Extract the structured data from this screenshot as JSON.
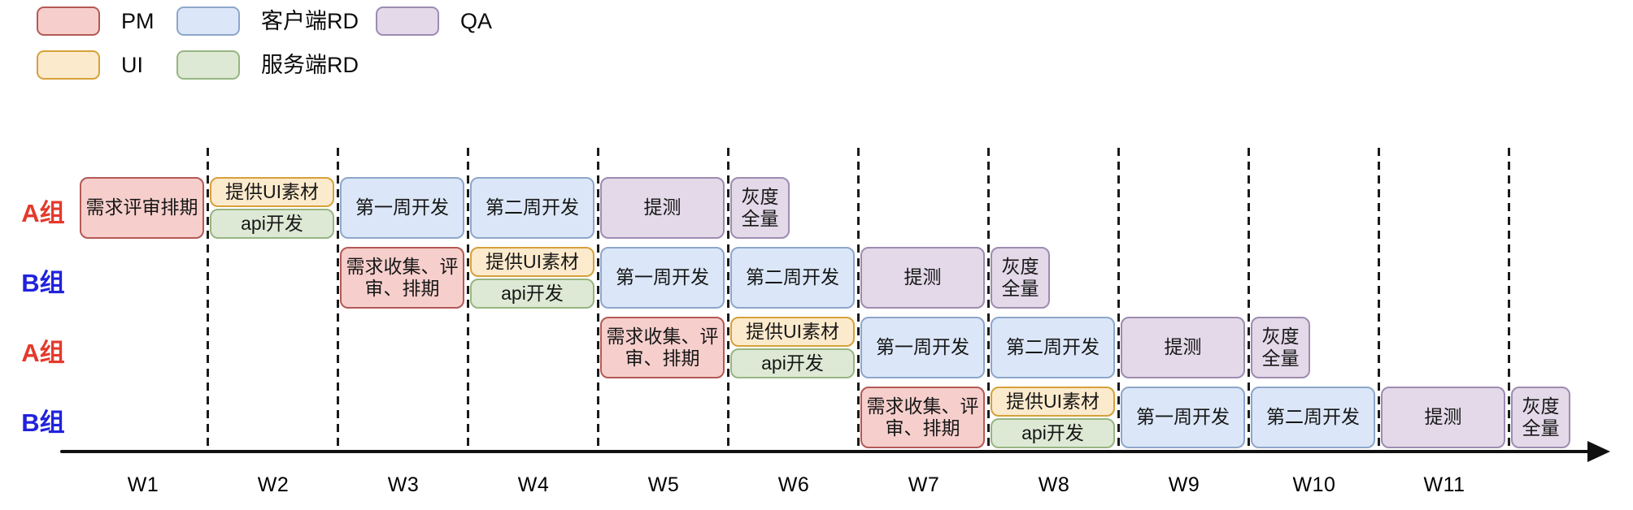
{
  "colors": {
    "pm": {
      "fill": "#f6cfcc",
      "stroke": "#b45955"
    },
    "ui": {
      "fill": "#fceacd",
      "stroke": "#d6a13a"
    },
    "client_rd": {
      "fill": "#dbe7f8",
      "stroke": "#8ea6cb"
    },
    "server_rd": {
      "fill": "#dde9d5",
      "stroke": "#97b581"
    },
    "qa": {
      "fill": "#e3d9e8",
      "stroke": "#9e8cb1"
    }
  },
  "legend": {
    "items": [
      {
        "label": "PM",
        "role": "pm",
        "row": 0,
        "col": 0
      },
      {
        "label": "客户端RD",
        "role": "client_rd",
        "row": 0,
        "col": 1
      },
      {
        "label": "QA",
        "role": "qa",
        "row": 0,
        "col": 2
      },
      {
        "label": "UI",
        "role": "ui",
        "row": 1,
        "col": 0
      },
      {
        "label": "服务端RD",
        "role": "server_rd",
        "row": 1,
        "col": 1
      }
    ]
  },
  "axis": {
    "week_labels": [
      "W1",
      "W2",
      "W3",
      "W4",
      "W5",
      "W6",
      "W7",
      "W8",
      "W9",
      "W10",
      "W11"
    ]
  },
  "chart_data": {
    "type": "gantt",
    "unit": "week",
    "weeks_shown": 11,
    "group_colors": {
      "A组": "#e5392c",
      "B组": "#2122dd"
    },
    "rows": [
      {
        "group": "A组",
        "tasks": [
          {
            "label": "需求评审排期",
            "role": "pm",
            "start": 1,
            "duration": 1,
            "lane": "full"
          },
          {
            "label": "提供UI素材",
            "role": "ui",
            "start": 2,
            "duration": 1,
            "lane": "top"
          },
          {
            "label": "api开发",
            "role": "server_rd",
            "start": 2,
            "duration": 1,
            "lane": "bottom"
          },
          {
            "label": "第一周开发",
            "role": "client_rd",
            "start": 3,
            "duration": 1,
            "lane": "full"
          },
          {
            "label": "第二周开发",
            "role": "client_rd",
            "start": 4,
            "duration": 1,
            "lane": "full"
          },
          {
            "label": "提测",
            "role": "qa",
            "start": 5,
            "duration": 1,
            "lane": "full"
          },
          {
            "label": "灰度全量",
            "role": "qa",
            "start": 6,
            "duration": 0.5,
            "lane": "full"
          }
        ]
      },
      {
        "group": "B组",
        "tasks": [
          {
            "label": "需求收集、评审、排期",
            "role": "pm",
            "start": 3,
            "duration": 1,
            "lane": "full"
          },
          {
            "label": "提供UI素材",
            "role": "ui",
            "start": 4,
            "duration": 1,
            "lane": "top"
          },
          {
            "label": "api开发",
            "role": "server_rd",
            "start": 4,
            "duration": 1,
            "lane": "bottom"
          },
          {
            "label": "第一周开发",
            "role": "client_rd",
            "start": 5,
            "duration": 1,
            "lane": "full"
          },
          {
            "label": "第二周开发",
            "role": "client_rd",
            "start": 6,
            "duration": 1,
            "lane": "full"
          },
          {
            "label": "提测",
            "role": "qa",
            "start": 7,
            "duration": 1,
            "lane": "full"
          },
          {
            "label": "灰度全量",
            "role": "qa",
            "start": 8,
            "duration": 0.5,
            "lane": "full"
          }
        ]
      },
      {
        "group": "A组",
        "tasks": [
          {
            "label": "需求收集、评审、排期",
            "role": "pm",
            "start": 5,
            "duration": 1,
            "lane": "full"
          },
          {
            "label": "提供UI素材",
            "role": "ui",
            "start": 6,
            "duration": 1,
            "lane": "top"
          },
          {
            "label": "api开发",
            "role": "server_rd",
            "start": 6,
            "duration": 1,
            "lane": "bottom"
          },
          {
            "label": "第一周开发",
            "role": "client_rd",
            "start": 7,
            "duration": 1,
            "lane": "full"
          },
          {
            "label": "第二周开发",
            "role": "client_rd",
            "start": 8,
            "duration": 1,
            "lane": "full"
          },
          {
            "label": "提测",
            "role": "qa",
            "start": 9,
            "duration": 1,
            "lane": "full"
          },
          {
            "label": "灰度全量",
            "role": "qa",
            "start": 10,
            "duration": 0.5,
            "lane": "full"
          }
        ]
      },
      {
        "group": "B组",
        "tasks": [
          {
            "label": "需求收集、评审、排期",
            "role": "pm",
            "start": 7,
            "duration": 1,
            "lane": "full"
          },
          {
            "label": "提供UI素材",
            "role": "ui",
            "start": 8,
            "duration": 1,
            "lane": "top"
          },
          {
            "label": "api开发",
            "role": "server_rd",
            "start": 8,
            "duration": 1,
            "lane": "bottom"
          },
          {
            "label": "第一周开发",
            "role": "client_rd",
            "start": 9,
            "duration": 1,
            "lane": "full"
          },
          {
            "label": "第二周开发",
            "role": "client_rd",
            "start": 10,
            "duration": 1,
            "lane": "full"
          },
          {
            "label": "提测",
            "role": "qa",
            "start": 11,
            "duration": 1,
            "lane": "full"
          },
          {
            "label": "灰度全量",
            "role": "qa",
            "start": 12,
            "duration": 0.5,
            "lane": "full"
          }
        ]
      }
    ]
  }
}
